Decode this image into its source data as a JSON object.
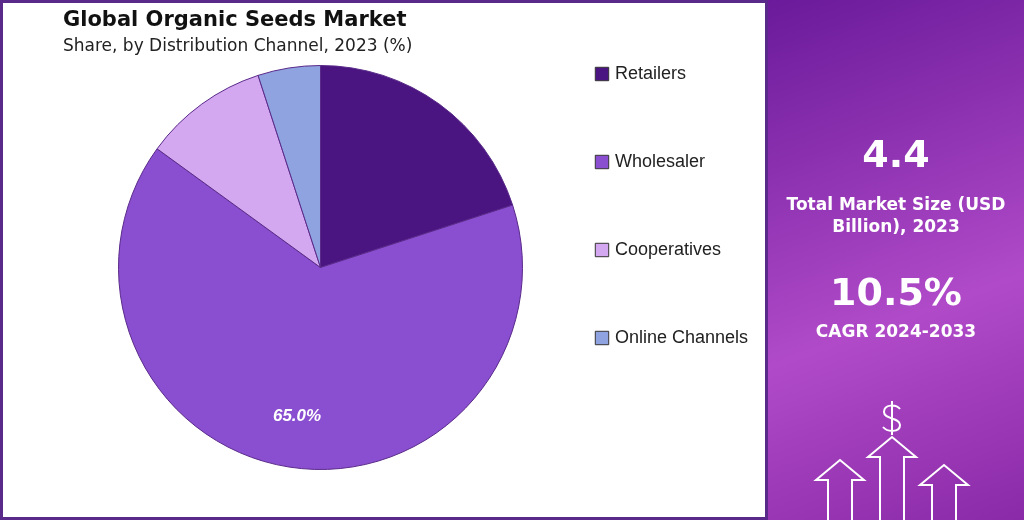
{
  "chart_data": {
    "type": "pie",
    "title": "Global Organic Seeds Market",
    "subtitle": "Share, by Distribution Channel, 2023 (%)",
    "categories": [
      "Retailers",
      "Wholesaler",
      "Cooperatives",
      "Online Channels"
    ],
    "values": [
      20,
      65,
      10,
      5
    ],
    "colors": [
      "#4a1580",
      "#8a4fd0",
      "#d4a8f0",
      "#8fa3e0"
    ],
    "value_labels": [
      null,
      "65.0%",
      null,
      null
    ],
    "legend": "right",
    "annotations": [
      "4.4",
      "Total Market Size (USD Billion), 2023",
      "10.5%",
      "CAGR 2024-2033"
    ]
  }
}
